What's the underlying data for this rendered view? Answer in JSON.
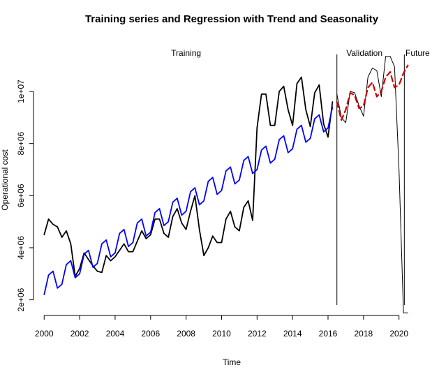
{
  "chart_data": {
    "type": "line",
    "title": "Training series and Regression with Trend and Seasonality",
    "xlabel": "Time",
    "ylabel": "Operational cost",
    "xlim": [
      1999.4,
      2021.9
    ],
    "ylim": [
      1400000,
      11850000
    ],
    "x_ticks": [
      2000,
      2002,
      2004,
      2006,
      2008,
      2010,
      2012,
      2014,
      2016,
      2018,
      2020
    ],
    "x_tick_labels": [
      "2000",
      "2002",
      "2004",
      "2006",
      "2008",
      "2010",
      "2012",
      "2014",
      "2016",
      "2018",
      "2020"
    ],
    "y_ticks": [
      2000000,
      4000000,
      6000000,
      8000000,
      10000000
    ],
    "y_tick_labels": [
      "2e+06",
      "4e+06",
      "6e+06",
      "8e+06",
      "1e+07"
    ],
    "grid": false,
    "legend": "none",
    "annotations": [
      {
        "text": "Training",
        "x": 2008.0
      },
      {
        "text": "Validation",
        "x": 2018.05
      },
      {
        "text": "Future",
        "x": 2021.05
      }
    ],
    "vlines": [
      {
        "name": "training-end-line",
        "x": 2016.5
      },
      {
        "name": "validation-end-line",
        "x": 2020.3
      }
    ],
    "series": [
      {
        "style": "training",
        "color": "#000000",
        "x": [
          2000.0,
          2000.25,
          2000.5,
          2000.75,
          2001.0,
          2001.25,
          2001.5,
          2001.75,
          2002.0,
          2002.25,
          2002.5,
          2002.75,
          2003.0,
          2003.25,
          2003.5,
          2003.75,
          2004.0,
          2004.25,
          2004.5,
          2004.75,
          2005.0,
          2005.25,
          2005.5,
          2005.75,
          2006.0,
          2006.25,
          2006.5,
          2006.75,
          2007.0,
          2007.25,
          2007.5,
          2007.75,
          2008.0,
          2008.25,
          2008.5,
          2008.75,
          2009.0,
          2009.25,
          2009.5,
          2009.75,
          2010.0,
          2010.25,
          2010.5,
          2010.75,
          2011.0,
          2011.25,
          2011.5,
          2011.75,
          2012.0,
          2012.25,
          2012.5,
          2012.75,
          2013.0,
          2013.25,
          2013.5,
          2013.75,
          2014.0,
          2014.25,
          2014.5,
          2014.75,
          2015.0,
          2015.25,
          2015.5,
          2015.75,
          2016.0,
          2016.25
        ],
        "y": [
          4500000,
          5100000,
          4900000,
          4800000,
          4400000,
          4650000,
          4150000,
          2900000,
          3200000,
          3800000,
          3550000,
          3300000,
          3100000,
          3050000,
          3700000,
          3500000,
          3650000,
          3900000,
          4150000,
          3850000,
          3850000,
          4250000,
          4650000,
          4350000,
          4500000,
          5100000,
          5100000,
          4550000,
          4400000,
          5200000,
          5500000,
          4950000,
          4700000,
          5400000,
          6000000,
          4700000,
          3700000,
          4000000,
          4450000,
          4200000,
          4200000,
          5100000,
          5400000,
          4800000,
          4650000,
          5550000,
          5800000,
          5050000,
          8600000,
          9900000,
          9900000,
          8700000,
          8700000,
          10000000,
          10200000,
          9300000,
          8700000,
          10300000,
          10550000,
          9300000,
          8650000,
          9950000,
          10250000,
          8750000,
          8250000,
          9600000
        ]
      },
      {
        "style": "regression",
        "color": "#0000ff",
        "x": [
          2000.0,
          2000.25,
          2000.5,
          2000.75,
          2001.0,
          2001.25,
          2001.5,
          2001.75,
          2002.0,
          2002.25,
          2002.5,
          2002.75,
          2003.0,
          2003.25,
          2003.5,
          2003.75,
          2004.0,
          2004.25,
          2004.5,
          2004.75,
          2005.0,
          2005.25,
          2005.5,
          2005.75,
          2006.0,
          2006.25,
          2006.5,
          2006.75,
          2007.0,
          2007.25,
          2007.5,
          2007.75,
          2008.0,
          2008.25,
          2008.5,
          2008.75,
          2009.0,
          2009.25,
          2009.5,
          2009.75,
          2010.0,
          2010.25,
          2010.5,
          2010.75,
          2011.0,
          2011.25,
          2011.5,
          2011.75,
          2012.0,
          2012.25,
          2012.5,
          2012.75,
          2013.0,
          2013.25,
          2013.5,
          2013.75,
          2014.0,
          2014.25,
          2014.5,
          2014.75,
          2015.0,
          2015.25,
          2015.5,
          2015.75,
          2016.0,
          2016.25
        ],
        "y": [
          2200000,
          2950000,
          3100000,
          2450000,
          2600000,
          3350000,
          3500000,
          2850000,
          3000000,
          3750000,
          3900000,
          3250000,
          3400000,
          4150000,
          4300000,
          3650000,
          3800000,
          4550000,
          4700000,
          4050000,
          4200000,
          4950000,
          5100000,
          4450000,
          4600000,
          5350000,
          5500000,
          4850000,
          5000000,
          5750000,
          5900000,
          5250000,
          5400000,
          6150000,
          6300000,
          5650000,
          5800000,
          6550000,
          6700000,
          6050000,
          6200000,
          6950000,
          7100000,
          6450000,
          6600000,
          7350000,
          7500000,
          6850000,
          7000000,
          7750000,
          7900000,
          7250000,
          7400000,
          8150000,
          8300000,
          7650000,
          7800000,
          8550000,
          8700000,
          8050000,
          8200000,
          8950000,
          9100000,
          8450000,
          8600000,
          9400000
        ]
      },
      {
        "style": "actual",
        "color": "#000000",
        "x": [
          2016.5,
          2016.75,
          2017.0,
          2017.25,
          2017.5,
          2017.75,
          2018.0,
          2018.25,
          2018.5,
          2018.75,
          2019.0,
          2019.25,
          2019.5,
          2019.75,
          2020.0,
          2020.25,
          2020.5
        ],
        "y": [
          9900000,
          9000000,
          8800000,
          10000000,
          9950000,
          9450000,
          9050000,
          10550000,
          10900000,
          10800000,
          9800000,
          11350000,
          11350000,
          10950000,
          7000000,
          1500000,
          1500000
        ]
      },
      {
        "style": "forecast",
        "color": "#cc0000",
        "x": [
          2016.5,
          2016.75,
          2017.0,
          2017.25,
          2017.5,
          2017.75,
          2018.0,
          2018.25,
          2018.5,
          2018.75,
          2019.0,
          2019.25,
          2019.5,
          2019.75,
          2020.0,
          2020.25,
          2020.5
        ],
        "y": [
          9600000,
          8900000,
          9300000,
          9950000,
          9850000,
          9350000,
          9450000,
          10150000,
          10350000,
          9800000,
          10000000,
          10550000,
          10750000,
          10150000,
          10250000,
          10700000,
          11000000
        ]
      }
    ]
  }
}
